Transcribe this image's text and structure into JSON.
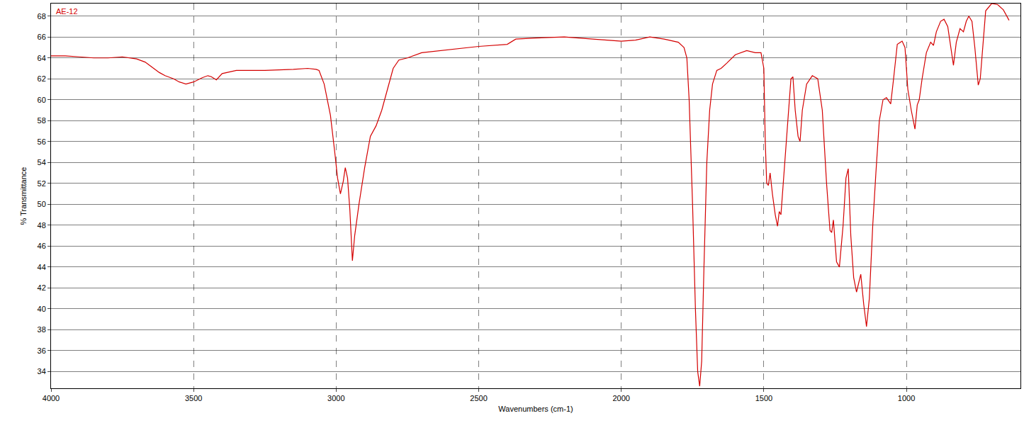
{
  "chart_data": {
    "type": "line",
    "x_label": "Wavenumbers (cm-1)",
    "y_label": "% Transmittance",
    "x": [
      4000,
      3950,
      3900,
      3850,
      3800,
      3750,
      3700,
      3670,
      3650,
      3620,
      3600,
      3570,
      3550,
      3527,
      3500,
      3470,
      3450,
      3438,
      3420,
      3400,
      3350,
      3250,
      3150,
      3100,
      3070,
      3060,
      3042,
      3020,
      3005,
      2995,
      2985,
      2975,
      2968,
      2960,
      2952,
      2943,
      2935,
      2920,
      2900,
      2880,
      2860,
      2840,
      2820,
      2800,
      2780,
      2750,
      2700,
      2600,
      2500,
      2400,
      2370,
      2300,
      2200,
      2100,
      2000,
      1950,
      1900,
      1850,
      1800,
      1780,
      1770,
      1762,
      1750,
      1740,
      1732,
      1725,
      1718,
      1710,
      1700,
      1690,
      1680,
      1665,
      1650,
      1630,
      1600,
      1560,
      1530,
      1510,
      1500,
      1495,
      1490,
      1484,
      1478,
      1470,
      1460,
      1452,
      1446,
      1440,
      1432,
      1420,
      1405,
      1398,
      1390,
      1380,
      1373,
      1365,
      1350,
      1330,
      1311,
      1295,
      1280,
      1268,
      1262,
      1256,
      1245,
      1235,
      1222,
      1212,
      1204,
      1195,
      1185,
      1175,
      1168,
      1160,
      1150,
      1140,
      1130,
      1118,
      1107,
      1095,
      1082,
      1070,
      1060,
      1055,
      1045,
      1032,
      1015,
      1005,
      995,
      983,
      970,
      962,
      955,
      945,
      930,
      915,
      905,
      895,
      880,
      868,
      855,
      845,
      835,
      825,
      812,
      800,
      790,
      781,
      770,
      760,
      748,
      741,
      733,
      722,
      701,
      680,
      660,
      640
    ],
    "xlim": [
      4000,
      600
    ],
    "xticks": [
      4000,
      3500,
      3000,
      2500,
      2000,
      1500,
      1000
    ],
    "ylim": [
      32.4,
      69.2
    ],
    "yticks": [
      34,
      36,
      38,
      40,
      42,
      44,
      46,
      48,
      50,
      52,
      54,
      56,
      58,
      60,
      62,
      64,
      66,
      68
    ],
    "grid": true,
    "series": [
      {
        "name": "AE-12",
        "color": "#d40000",
        "values": [
          64.2,
          64.2,
          64.1,
          64.0,
          64.0,
          64.1,
          63.9,
          63.6,
          63.2,
          62.6,
          62.3,
          62.0,
          61.7,
          61.5,
          61.7,
          62.1,
          62.3,
          62.2,
          61.9,
          62.5,
          62.8,
          62.8,
          62.9,
          63.0,
          62.9,
          62.8,
          61.5,
          58.5,
          55.0,
          52.5,
          51.0,
          52.2,
          53.5,
          52.5,
          49.5,
          44.6,
          47.0,
          50.0,
          53.5,
          56.5,
          57.5,
          59.0,
          61.0,
          63.0,
          63.8,
          64.0,
          64.5,
          64.8,
          65.1,
          65.3,
          65.8,
          65.9,
          66.0,
          65.8,
          65.6,
          65.7,
          66.0,
          65.8,
          65.5,
          65.0,
          64.0,
          60.0,
          50.0,
          40.0,
          34.0,
          32.6,
          35.0,
          44.0,
          54.0,
          59.0,
          61.5,
          62.8,
          63.0,
          63.5,
          64.3,
          64.7,
          64.5,
          64.5,
          63.0,
          56.0,
          52.0,
          51.8,
          53.0,
          51.0,
          49.0,
          47.9,
          49.3,
          49.0,
          52.0,
          57.0,
          62.0,
          62.2,
          59.0,
          56.5,
          56.0,
          59.0,
          61.5,
          62.3,
          62.0,
          59.0,
          52.0,
          47.5,
          47.3,
          48.5,
          44.5,
          44.0,
          48.0,
          52.5,
          53.4,
          47.0,
          43.0,
          41.6,
          42.5,
          43.3,
          40.5,
          38.3,
          41.0,
          48.0,
          53.0,
          58.0,
          60.0,
          60.2,
          59.8,
          59.6,
          62.0,
          65.3,
          65.6,
          65.0,
          61.0,
          59.0,
          57.2,
          59.5,
          60.0,
          62.0,
          64.5,
          65.5,
          65.2,
          66.5,
          67.5,
          67.7,
          67.0,
          65.0,
          63.3,
          65.5,
          66.8,
          66.5,
          67.5,
          68.0,
          67.5,
          65.0,
          61.4,
          62.0,
          65.0,
          68.5,
          69.2,
          69.1,
          68.6,
          67.6
        ]
      }
    ]
  }
}
